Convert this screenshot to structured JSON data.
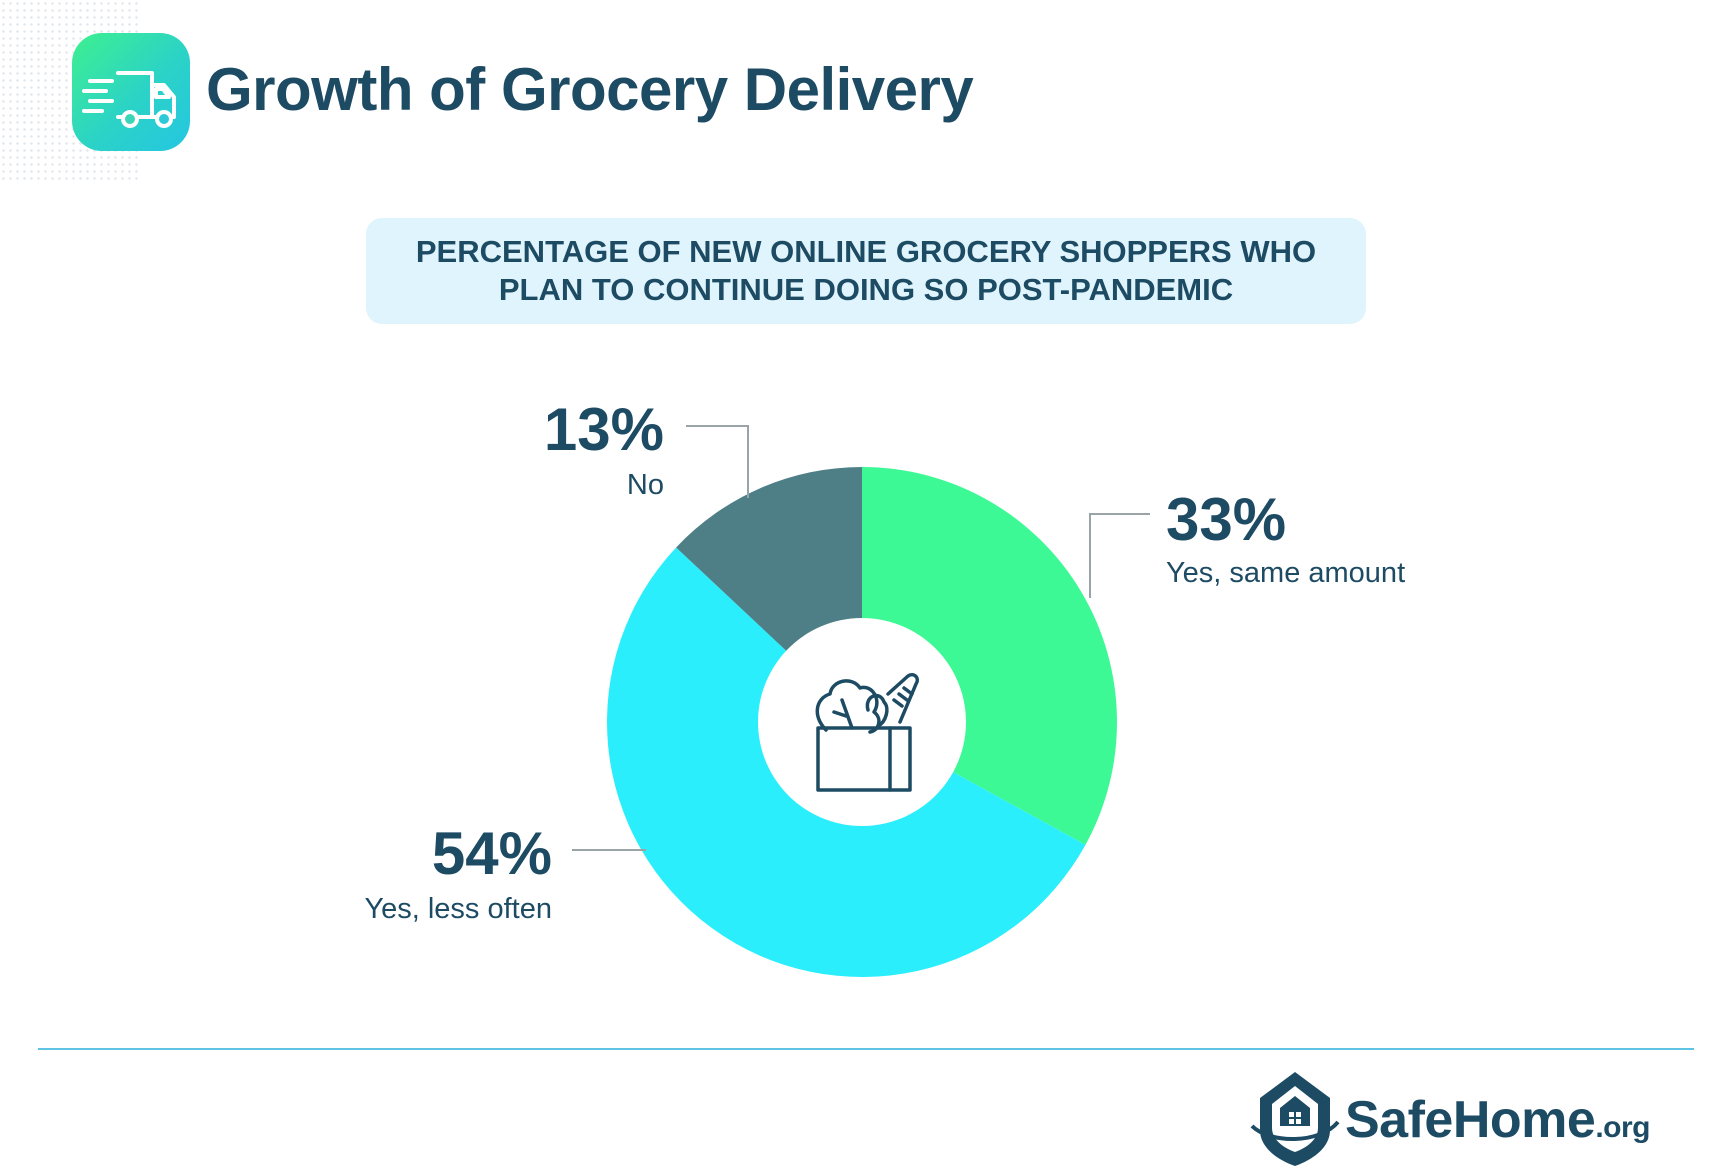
{
  "header": {
    "title": "Growth of Grocery Delivery",
    "icon": "delivery-truck-icon"
  },
  "subtitle": {
    "line1": "PERCENTAGE OF NEW ONLINE GROCERY SHOPPERS WHO",
    "line2": "PLAN TO CONTINUE DOING SO POST-PANDEMIC"
  },
  "chart_data": {
    "type": "pie",
    "variant": "donut",
    "center_icon": "grocery-bag-icon",
    "slices": [
      {
        "label": "Yes, same amount",
        "value": 33,
        "display": "33%",
        "color": "#3cf995"
      },
      {
        "label": "Yes, less often",
        "value": 54,
        "display": "54%",
        "color": "#2aeefc"
      },
      {
        "label": "No",
        "value": 13,
        "display": "13%",
        "color": "#4e7f87"
      }
    ]
  },
  "footer": {
    "brand_name": "SafeHome",
    "brand_tld": ".org",
    "logo_icon": "house-shield-icon"
  },
  "colors": {
    "text": "#1d4b63",
    "subtitle_bg": "#dff4fc",
    "divider": "#5fc4e3",
    "leader_line": "#9aa3a8"
  }
}
